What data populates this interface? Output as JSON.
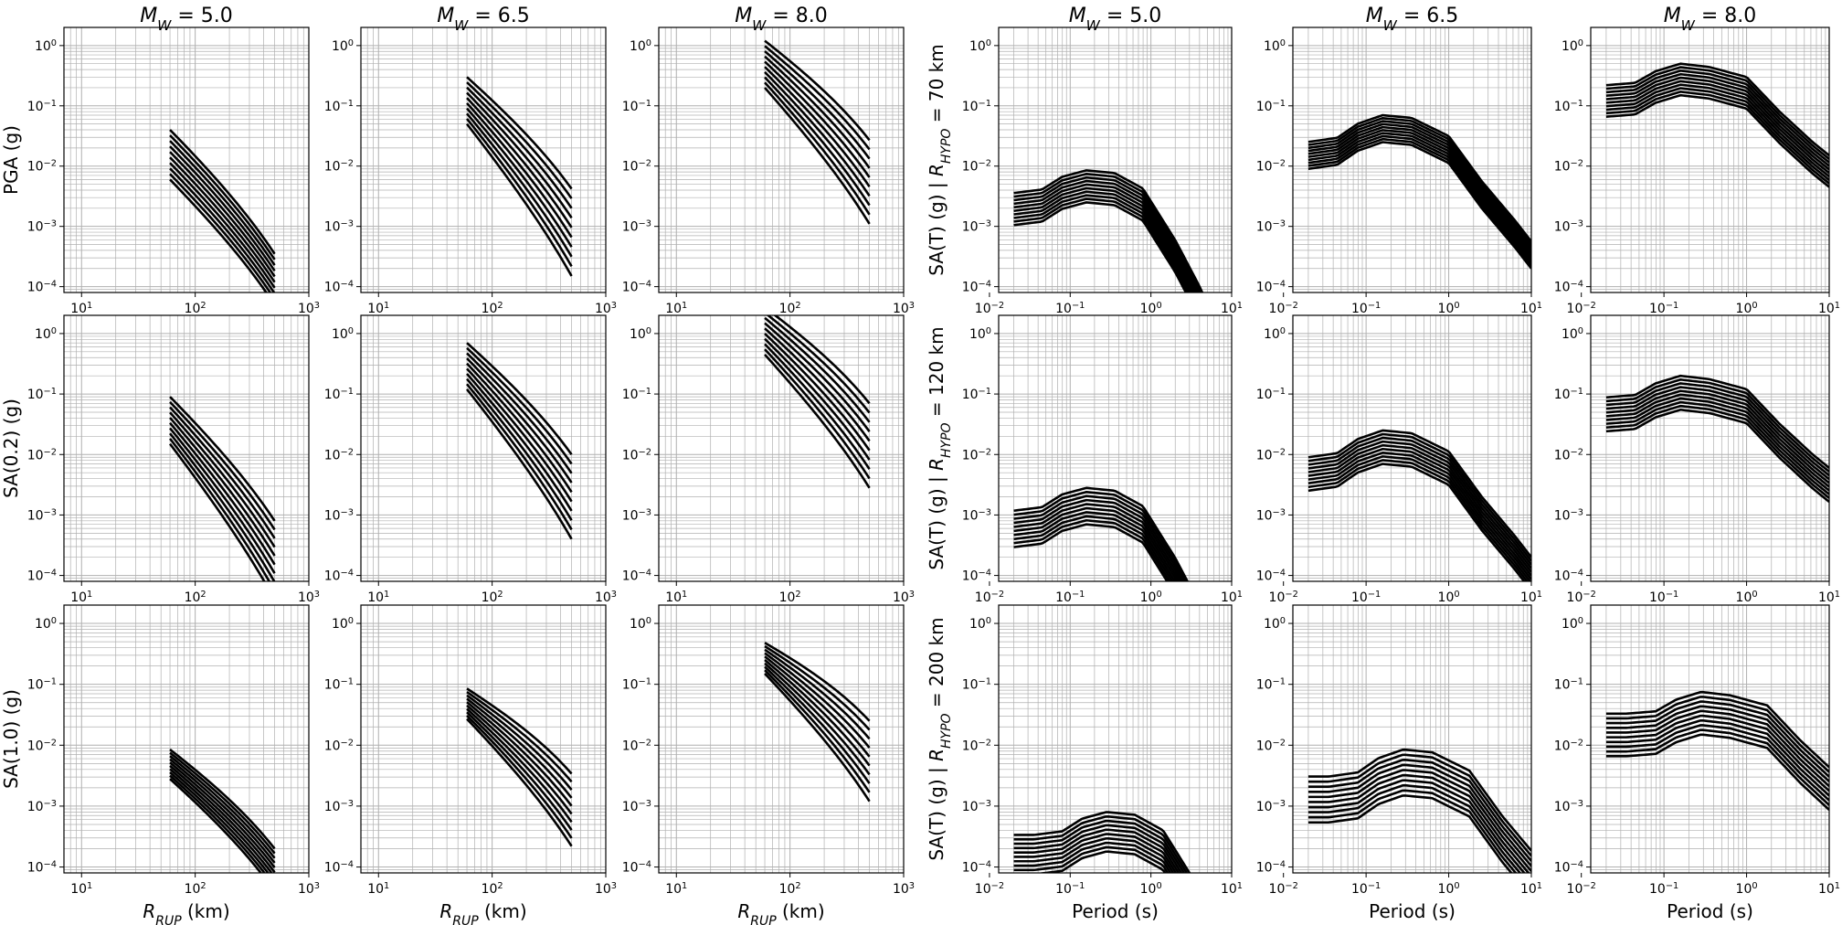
{
  "figure": {
    "col_titles": [
      "M_W = 5.0",
      "M_W = 6.5",
      "M_W = 8.0",
      "M_W = 5.0",
      "M_W = 6.5",
      "M_W = 8.0"
    ],
    "col_title_parts": {
      "var": "M",
      "sub": "W",
      "values": [
        "= 5.0",
        "= 6.5",
        "= 8.0"
      ]
    },
    "attenuation_ylabels": [
      "PGA (g)",
      "SA(0.2) (g)",
      "SA(1.0) (g)"
    ],
    "spectra_ylabels": [
      "SA(T) (g) | R_HYPO = 70 km",
      "SA(T) (g) | R_HYPO = 120 km",
      "SA(T) (g) | R_HYPO = 200 km"
    ],
    "spectra_ylabel_parts": {
      "prefix": "SA(T) (g) | ",
      "var": "R",
      "sub": "HYPO",
      "values": [
        "= 70 km",
        "= 120 km",
        "= 200 km"
      ]
    },
    "attenuation_xlabel": "R_RUP (km)",
    "attenuation_xlabel_parts": {
      "var": "R",
      "sub": "RUP",
      "unit": "(km)"
    },
    "spectra_xlabel": "Period (s)",
    "x_ticks_attenuation": [
      {
        "base": "10",
        "exp": "1"
      },
      {
        "base": "10",
        "exp": "2"
      },
      {
        "base": "10",
        "exp": "3"
      }
    ],
    "x_ticks_spectra": [
      {
        "base": "10",
        "exp": "−2"
      },
      {
        "base": "10",
        "exp": "−1"
      },
      {
        "base": "10",
        "exp": "0"
      },
      {
        "base": "10",
        "exp": "1"
      }
    ],
    "y_ticks": [
      {
        "base": "10",
        "exp": "0"
      },
      {
        "base": "10",
        "exp": "−1"
      },
      {
        "base": "10",
        "exp": "−2"
      },
      {
        "base": "10",
        "exp": "−3"
      },
      {
        "base": "10",
        "exp": "−4"
      }
    ],
    "colors": {
      "line": "#000000",
      "grid": "#b0b0b0",
      "spine": "#000000"
    }
  },
  "chart_data": [
    {
      "panel": "attenuation",
      "type": "line",
      "xscale": "log",
      "yscale": "log",
      "xlim": [
        7,
        1000
      ],
      "ylim": [
        8e-05,
        2
      ],
      "grid": true,
      "magnitudes": [
        5.0,
        6.5,
        8.0
      ],
      "intensity_measures": [
        "PGA",
        "SA(0.2)",
        "SA(1.0)"
      ],
      "distance_range_km": [
        60,
        500
      ],
      "curves_per_panel": 10,
      "approx_values": [
        [
          {
            "start": [
              0.006,
              0.04
            ],
            "end": [
              5e-05,
              0.00035
            ]
          },
          {
            "start": [
              0.05,
              0.3
            ],
            "end": [
              0.00015,
              0.0042
            ]
          },
          {
            "start": [
              0.2,
              1.2
            ],
            "end": [
              0.0011,
              0.027
            ]
          }
        ],
        [
          {
            "start": [
              0.015,
              0.09
            ],
            "end": [
              4e-05,
              0.0008
            ]
          },
          {
            "start": [
              0.12,
              0.7
            ],
            "end": [
              0.0004,
              0.01
            ]
          },
          {
            "start": [
              0.45,
              2.7
            ],
            "end": [
              0.0028,
              0.07
            ]
          }
        ],
        [
          {
            "start": [
              0.0028,
              0.0085
            ],
            "end": [
              4e-05,
              0.0002
            ]
          },
          {
            "start": [
              0.027,
              0.085
            ],
            "end": [
              0.00022,
              0.0034
            ]
          },
          {
            "start": [
              0.15,
              0.48
            ],
            "end": [
              0.0012,
              0.025
            ]
          }
        ]
      ]
    },
    {
      "panel": "response_spectra",
      "type": "line",
      "xscale": "log",
      "yscale": "log",
      "xlim": [
        0.013,
        10
      ],
      "ylim": [
        8e-05,
        2
      ],
      "grid": true,
      "magnitudes": [
        5.0,
        6.5,
        8.0
      ],
      "hypocentral_distances_km": [
        70,
        120,
        200
      ],
      "period_range_s": [
        0.02,
        10
      ],
      "curves_per_panel": 10,
      "approx_peak_range": [
        [
          [
            0.0025,
            0.0085
          ],
          [
            0.025,
            0.07
          ],
          [
            0.15,
            0.5
          ]
        ],
        [
          [
            0.0007,
            0.0028
          ],
          [
            0.007,
            0.025
          ],
          [
            0.055,
            0.2
          ]
        ],
        [
          [
            0.00018,
            0.0008
          ],
          [
            0.0015,
            0.0085
          ],
          [
            0.015,
            0.075
          ]
        ]
      ]
    }
  ]
}
